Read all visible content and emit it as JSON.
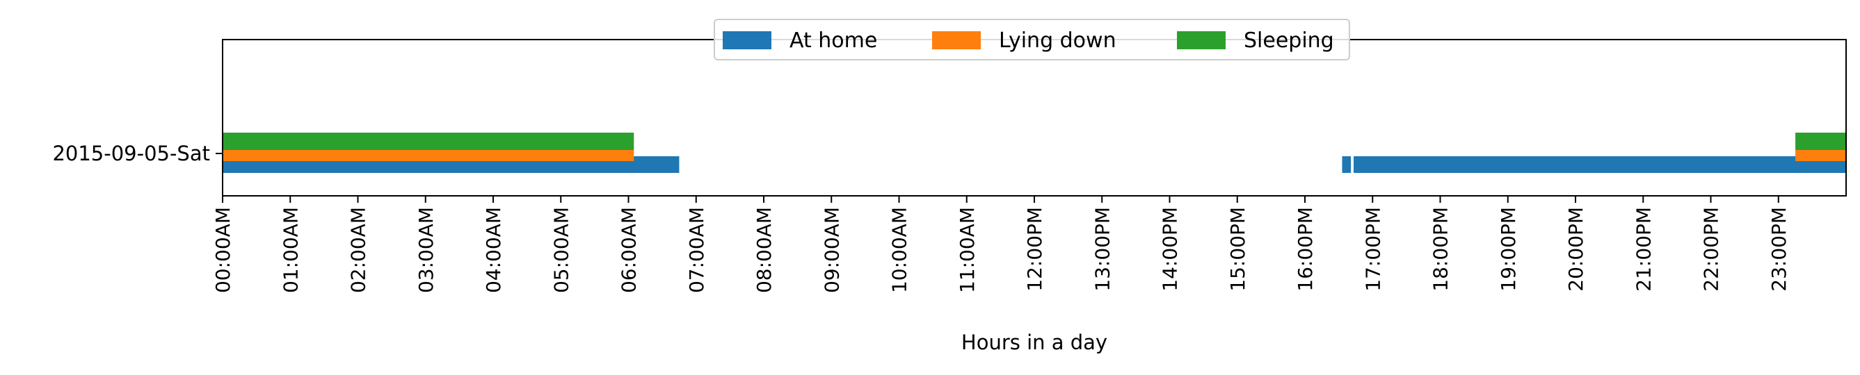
{
  "chart_data": {
    "type": "bar",
    "orientation": "horizontal-timeline",
    "title": "",
    "xlabel": "Hours in a day",
    "ylabel": "",
    "xlim": [
      0,
      24
    ],
    "categories": [
      "2015-09-05-Sat"
    ],
    "x_tick_labels": [
      "00:00AM",
      "01:00AM",
      "02:00AM",
      "03:00AM",
      "04:00AM",
      "05:00AM",
      "06:00AM",
      "07:00AM",
      "08:00AM",
      "09:00AM",
      "10:00AM",
      "11:00AM",
      "12:00PM",
      "13:00PM",
      "14:00PM",
      "15:00PM",
      "16:00PM",
      "17:00PM",
      "18:00PM",
      "19:00PM",
      "20:00PM",
      "21:00PM",
      "22:00PM",
      "23:00PM"
    ],
    "grid": false,
    "legend_position": "top-center",
    "series": [
      {
        "name": "At home",
        "color": "#1f77b4",
        "intervals": [
          [
            0.0,
            6.75
          ],
          [
            16.55,
            16.68
          ],
          [
            16.72,
            24.0
          ]
        ]
      },
      {
        "name": "Lying down",
        "color": "#ff7f0e",
        "intervals": [
          [
            0.0,
            6.08
          ],
          [
            23.25,
            24.0
          ]
        ]
      },
      {
        "name": "Sleeping",
        "color": "#2ca02c",
        "intervals": [
          [
            0.0,
            6.08
          ],
          [
            23.25,
            24.0
          ]
        ]
      }
    ]
  }
}
